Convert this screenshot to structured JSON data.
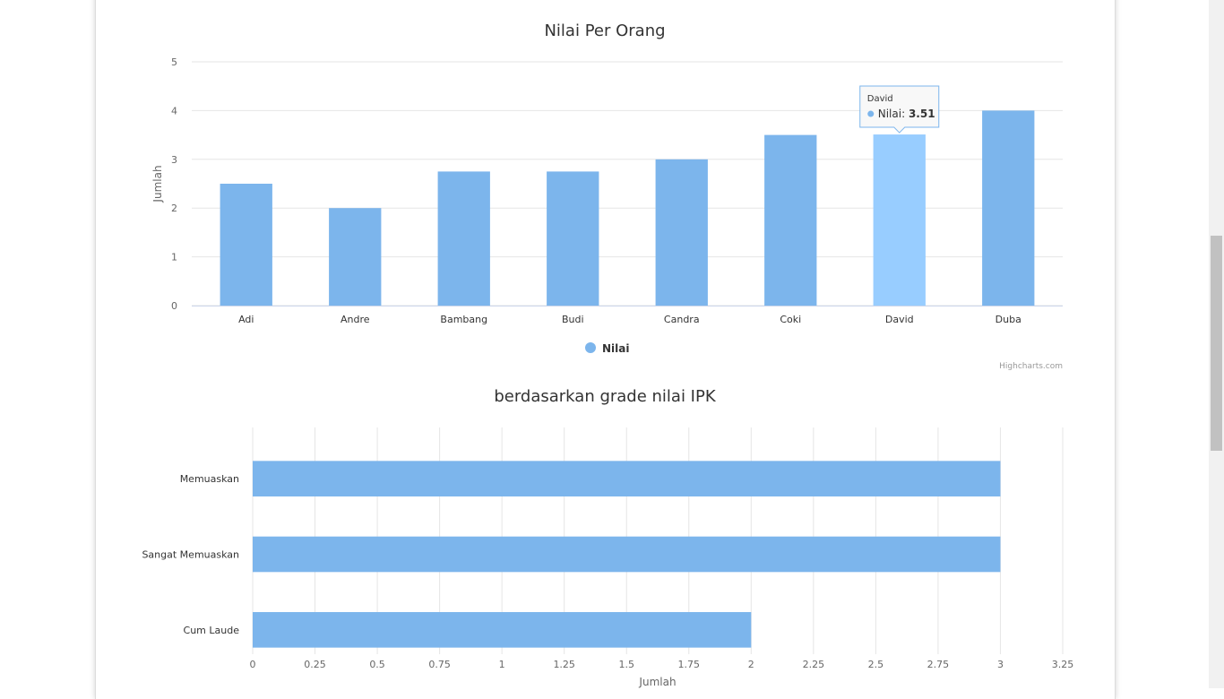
{
  "chart_data": [
    {
      "type": "bar",
      "orientation": "vertical",
      "title": "Nilai Per Orang",
      "xlabel": "",
      "ylabel": "Jumlah",
      "categories": [
        "Adi",
        "Andre",
        "Bambang",
        "Budi",
        "Candra",
        "Coki",
        "David",
        "Duba"
      ],
      "series": [
        {
          "name": "Nilai",
          "values": [
            2.5,
            2.0,
            2.75,
            2.75,
            3.0,
            3.5,
            3.51,
            4.0
          ]
        }
      ],
      "ylim": [
        0,
        5
      ],
      "yticks": [
        "0",
        "1",
        "2",
        "3",
        "4",
        "5"
      ],
      "grid": true,
      "legend": "bottom-center",
      "color": "#7cb5ec",
      "hover_color": "#98cdff",
      "tooltip": {
        "category": "David",
        "label": "Nilai: ",
        "value": "3.51"
      },
      "credits": "Highcharts.com"
    },
    {
      "type": "bar",
      "orientation": "horizontal",
      "title": "berdasarkan grade nilai IPK",
      "xlabel": "Jumlah",
      "ylabel": "",
      "categories": [
        "Memuaskan",
        "Sangat Memuaskan",
        "Cum Laude"
      ],
      "series": [
        {
          "values": [
            3,
            3,
            2
          ]
        }
      ],
      "xlim": [
        0,
        3.25
      ],
      "xticks": [
        "0",
        "0.25",
        "0.5",
        "0.75",
        "1",
        "1.25",
        "1.5",
        "1.75",
        "2",
        "2.25",
        "2.5",
        "2.75",
        "3",
        "3.25"
      ],
      "grid": true,
      "color": "#7cb5ec"
    }
  ]
}
